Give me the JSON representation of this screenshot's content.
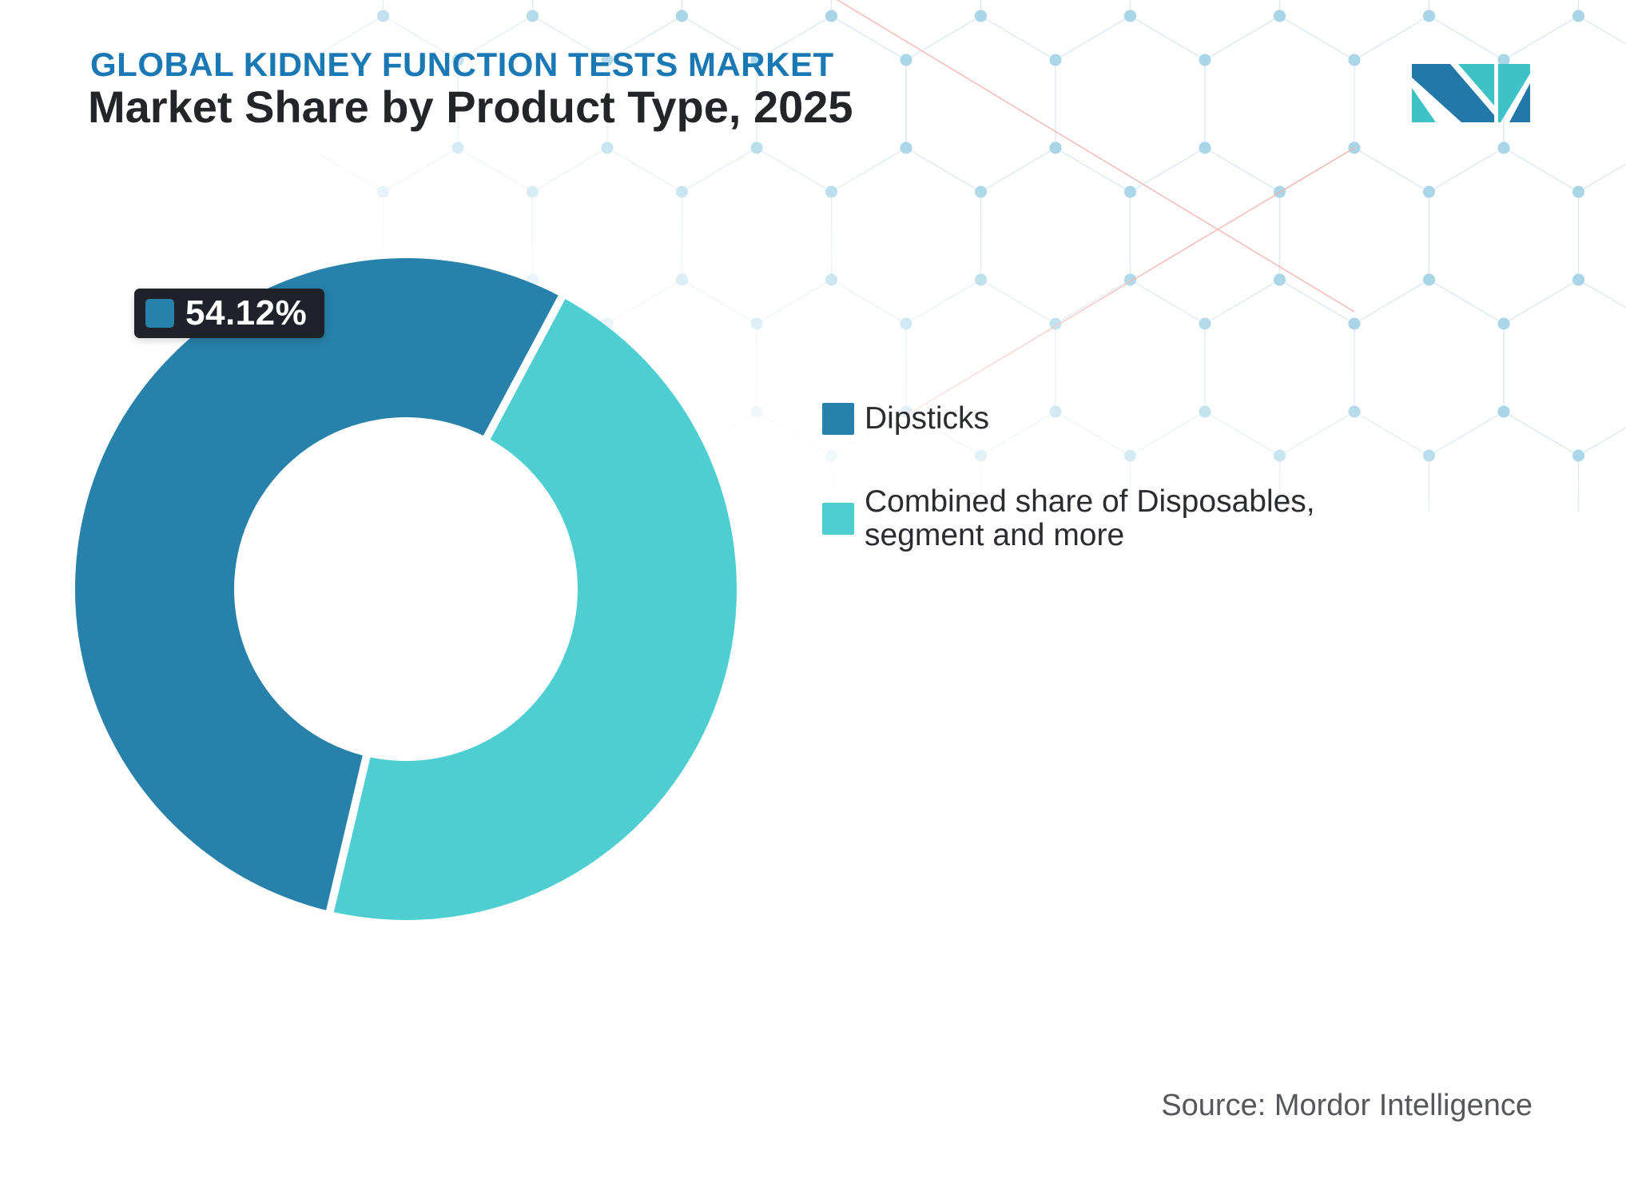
{
  "header": {
    "eyebrow": "GLOBAL KIDNEY FUNCTION TESTS MARKET",
    "title": "Market Share by Product Type, 2025"
  },
  "chart_data": {
    "type": "pie",
    "subtype": "donut",
    "title": "Market Share by Product Type, 2025",
    "series": [
      {
        "name": "Dipsticks",
        "value": 54.12,
        "color": "#2781AA"
      },
      {
        "name": "Combined share of Disposables, segment and more",
        "value": 45.88,
        "color": "#4FCED2"
      }
    ],
    "data_label": {
      "text": "54.12%",
      "series": "Dipsticks"
    },
    "start_angle_deg": 28.1,
    "inner_radius_ratio": 0.52,
    "legend_position": "right",
    "grid": false
  },
  "tooltip": {
    "value": "54.12%",
    "swatch_color": "#2781AA",
    "background": "#1F2329",
    "text_color": "#ffffff"
  },
  "legend": {
    "items": [
      {
        "label": "Dipsticks",
        "color": "#2781AA"
      },
      {
        "label": "Combined share of Disposables,\nsegment and more",
        "color": "#4FCED2"
      }
    ]
  },
  "footer": {
    "source": "Source: Mordor Intelligence"
  },
  "logo": {
    "blue": "#2478A9",
    "teal": "#3FC2C6"
  },
  "colors": {
    "eyebrow_text": "#1A79B5",
    "title_text": "#242528",
    "legend_text": "#2A2C2F",
    "source_text": "#55575A",
    "pattern_line": "#DCE9F2",
    "pattern_dot": "#A9D6E8",
    "pattern_red": "#F2B3AE"
  }
}
